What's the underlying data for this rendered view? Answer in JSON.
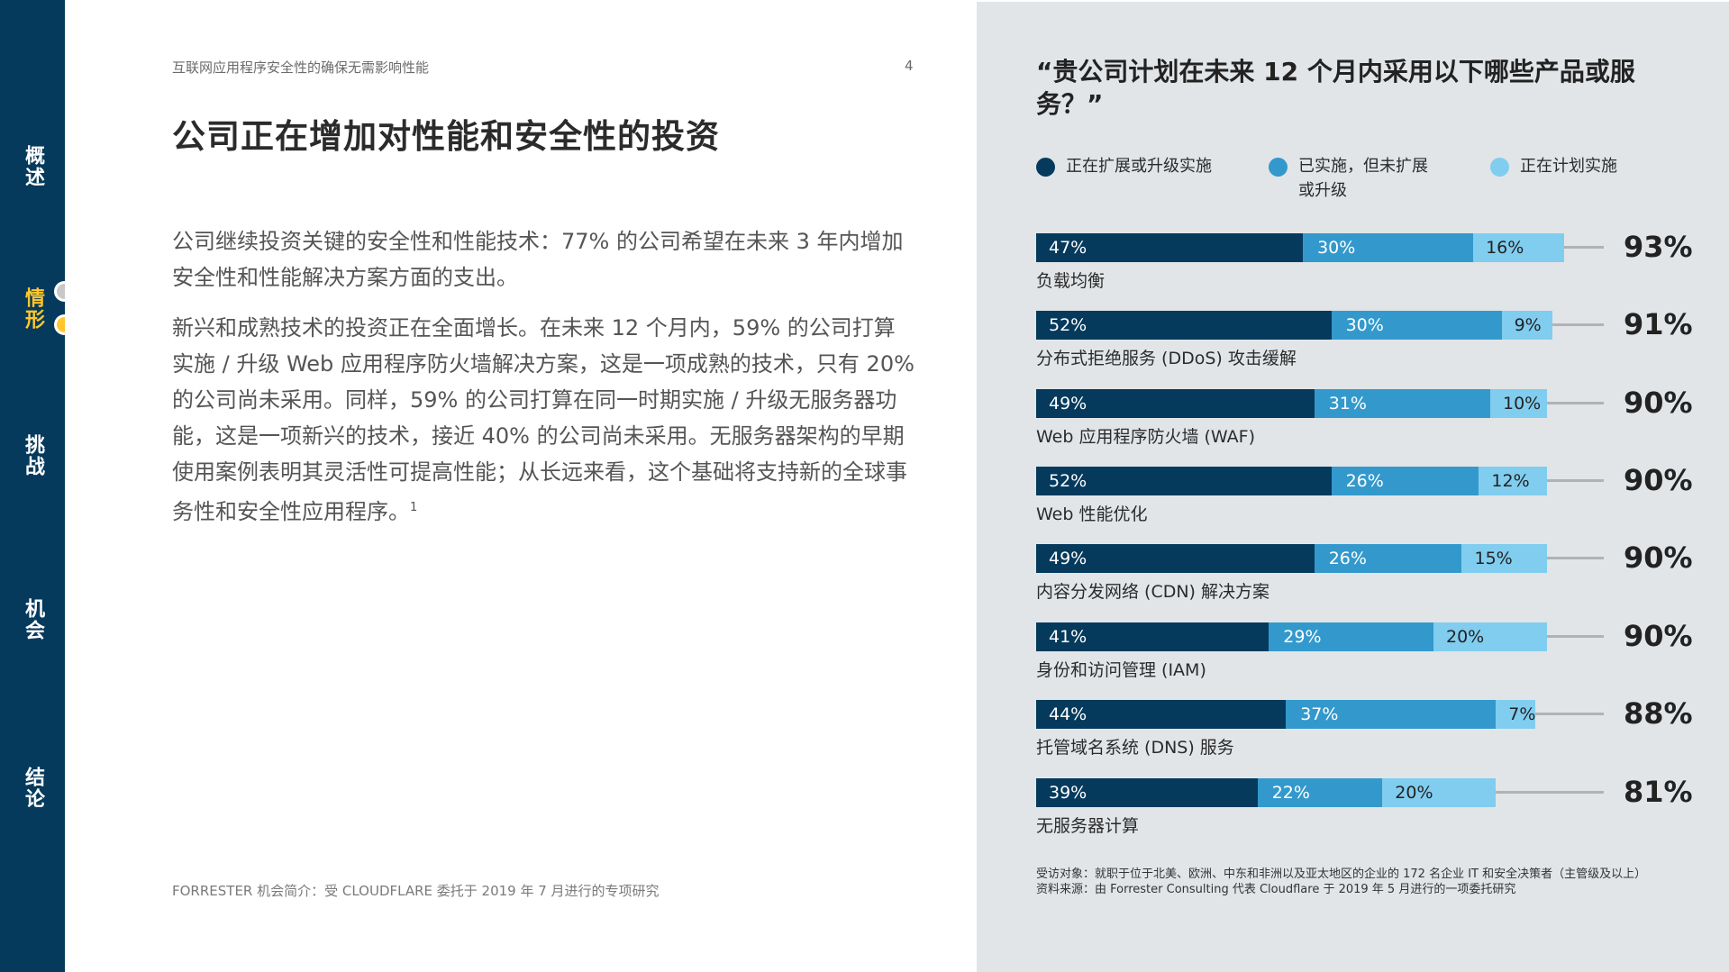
{
  "sidebar": {
    "items": [
      {
        "label": "概述",
        "active": false
      },
      {
        "label": "情形",
        "active": true
      },
      {
        "label": "挑战",
        "active": false
      },
      {
        "label": "机会",
        "active": false
      },
      {
        "label": "结论",
        "active": false
      }
    ],
    "colors": {
      "background": "#053a5c",
      "active": "#ffc72c",
      "text": "#ffffff"
    }
  },
  "page": {
    "running_head": "互联网应用程序安全性的确保无需影响性能",
    "page_number": "4",
    "title": "公司正在增加对性能和安全性的投资",
    "paragraphs": [
      "公司继续投资关键的安全性和性能技术：77% 的公司希望在未来 3 年内增加安全性和性能解决方案方面的支出。",
      "新兴和成熟技术的投资正在全面增长。在未来 12 个月内，59% 的公司打算实施 / 升级 Web 应用程序防火墙解决方案，这是一项成熟的技术，只有 20% 的公司尚未采用。同样，59% 的公司打算在同一时期实施 / 升级无服务器功能，这是一项新兴的技术，接近 40% 的公司尚未采用。无服务器架构的早期使用案例表明其灵活性可提高性能；从长远来看，这个基础将支持新的全球事务性和安全性应用程序。"
    ],
    "footnote_marker": "1",
    "footer": "FORRESTER 机会简介：受 CLOUDFLARE 委托于 2019 年 7 月进行的专项研究"
  },
  "chart_data": {
    "type": "bar",
    "orientation": "horizontal",
    "stacked": true,
    "title": "“贵公司计划在未来 12 个月内采用以下哪些产品或服务？”",
    "categories": [
      "负载均衡",
      "分布式拒绝服务 (DDoS) 攻击缓解",
      "Web 应用程序防火墙 (WAF)",
      "Web 性能优化",
      "内容分发网络 (CDN) 解决方案",
      "身份和访问管理 (IAM)",
      "托管域名系统 (DNS) 服务",
      "无服务器计算"
    ],
    "series": [
      {
        "name": "正在扩展或升级实施",
        "color": "#053a5c",
        "values": [
          47,
          52,
          49,
          52,
          49,
          41,
          44,
          39
        ]
      },
      {
        "name": "已实施，但未扩展或升级",
        "color": "#3399cc",
        "values": [
          30,
          30,
          31,
          26,
          26,
          29,
          37,
          22
        ]
      },
      {
        "name": "正在计划实施",
        "color": "#80cdef",
        "values": [
          16,
          9,
          10,
          12,
          15,
          20,
          7,
          20
        ]
      }
    ],
    "totals": [
      "93%",
      "91%",
      "90%",
      "90%",
      "90%",
      "90%",
      "88%",
      "81%"
    ],
    "xlabel": "",
    "ylabel": "",
    "xlim": [
      0,
      100
    ],
    "grid": false,
    "legend_position": "top",
    "source_lines": [
      "受访对象：就职于位于北美、欧洲、中东和非洲以及亚太地区的企业的 172 名企业 IT 和安全决策者（主管级及以上）",
      "资料来源：由 Forrester Consulting 代表 Cloudflare 于 2019 年 5 月进行的一项委托研究"
    ]
  },
  "legend": [
    {
      "label": "正在扩展或升级实施",
      "color": "#053a5c"
    },
    {
      "label": "已实施，但未扩展或升级",
      "color": "#3399cc"
    },
    {
      "label": "正在计划实施",
      "color": "#80cdef"
    }
  ],
  "panel": {
    "background": "#e1e5e8"
  }
}
